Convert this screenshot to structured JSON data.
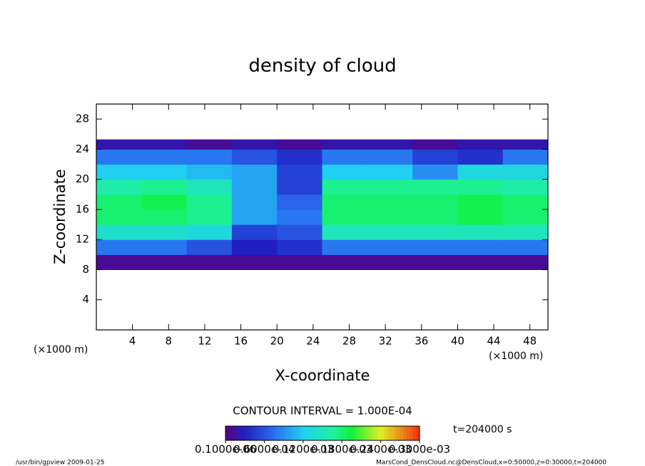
{
  "chart_data": {
    "type": "heatmap",
    "title": "density of cloud",
    "xlabel": "X-coordinate",
    "ylabel": "Z-coordinate",
    "xunit": "(×1000 m)",
    "yunit": "(×1000 m)",
    "xlim": [
      0,
      50
    ],
    "ylim": [
      0,
      30
    ],
    "xticks": [
      4,
      8,
      12,
      16,
      20,
      24,
      28,
      32,
      36,
      40,
      44,
      48
    ],
    "yticks": [
      4,
      8,
      12,
      16,
      20,
      24,
      28
    ],
    "xbins": [
      0,
      5,
      10,
      15,
      20,
      25,
      30,
      35,
      40,
      45,
      50
    ],
    "ybins": [
      8,
      10,
      12,
      14,
      16,
      18,
      20,
      22,
      24,
      25.3
    ],
    "values": [
      [
        1e-05,
        1e-05,
        1e-05,
        1e-05,
        1e-05,
        1e-05,
        1e-05,
        1e-05,
        1e-05,
        1e-05
      ],
      [
        8e-05,
        8e-05,
        6e-05,
        3e-05,
        4e-05,
        8e-05,
        8e-05,
        8e-05,
        8e-05,
        8e-05
      ],
      [
        0.00014,
        0.00014,
        0.00013,
        5e-05,
        6e-05,
        0.00015,
        0.00015,
        0.00015,
        0.00015,
        0.00015
      ],
      [
        0.00018,
        0.00018,
        0.00017,
        0.0001,
        8e-05,
        0.00018,
        0.00018,
        0.00018,
        0.00019,
        0.00018
      ],
      [
        0.00018,
        0.00019,
        0.00017,
        0.0001,
        7e-05,
        0.00018,
        0.00018,
        0.00018,
        0.00019,
        0.00018
      ],
      [
        0.00016,
        0.00017,
        0.00015,
        0.0001,
        5e-05,
        0.00017,
        0.00017,
        0.00017,
        0.00017,
        0.00016
      ],
      [
        0.00012,
        0.00012,
        0.00011,
        0.0001,
        5e-05,
        0.00012,
        0.00012,
        9e-05,
        0.00013,
        0.00013
      ],
      [
        8e-05,
        8e-05,
        8e-05,
        6e-05,
        4e-05,
        8e-05,
        8e-05,
        5e-05,
        4e-05,
        8e-05
      ],
      [
        2e-05,
        2e-05,
        1e-05,
        2e-05,
        1e-05,
        2e-05,
        2e-05,
        1e-05,
        2e-05,
        2e-05
      ]
    ],
    "clim": [
      0,
      0.0003
    ],
    "colorbar_ticks": [
      {
        "value": 1e-07,
        "label": "0.1000e-06"
      },
      {
        "value": 6e-05,
        "label": "0.6000e-04"
      },
      {
        "value": 0.00012,
        "label": "0.1200e-03"
      },
      {
        "value": 0.00018,
        "label": "0.1800e-03"
      },
      {
        "value": 0.00024,
        "label": "0.2400e-03"
      },
      {
        "value": 0.0003,
        "label": "0.3000e-03"
      }
    ],
    "contour_interval": "CONTOUR INTERVAL = 1.000E-04",
    "time_label": "t=204000 s",
    "footer_left": "/usr/bin/gpview   2009-01-25",
    "footer_right": "MarsCond_DensCloud.nc@DensCloud,x=0:50000,z=0:30000,t=204000"
  }
}
